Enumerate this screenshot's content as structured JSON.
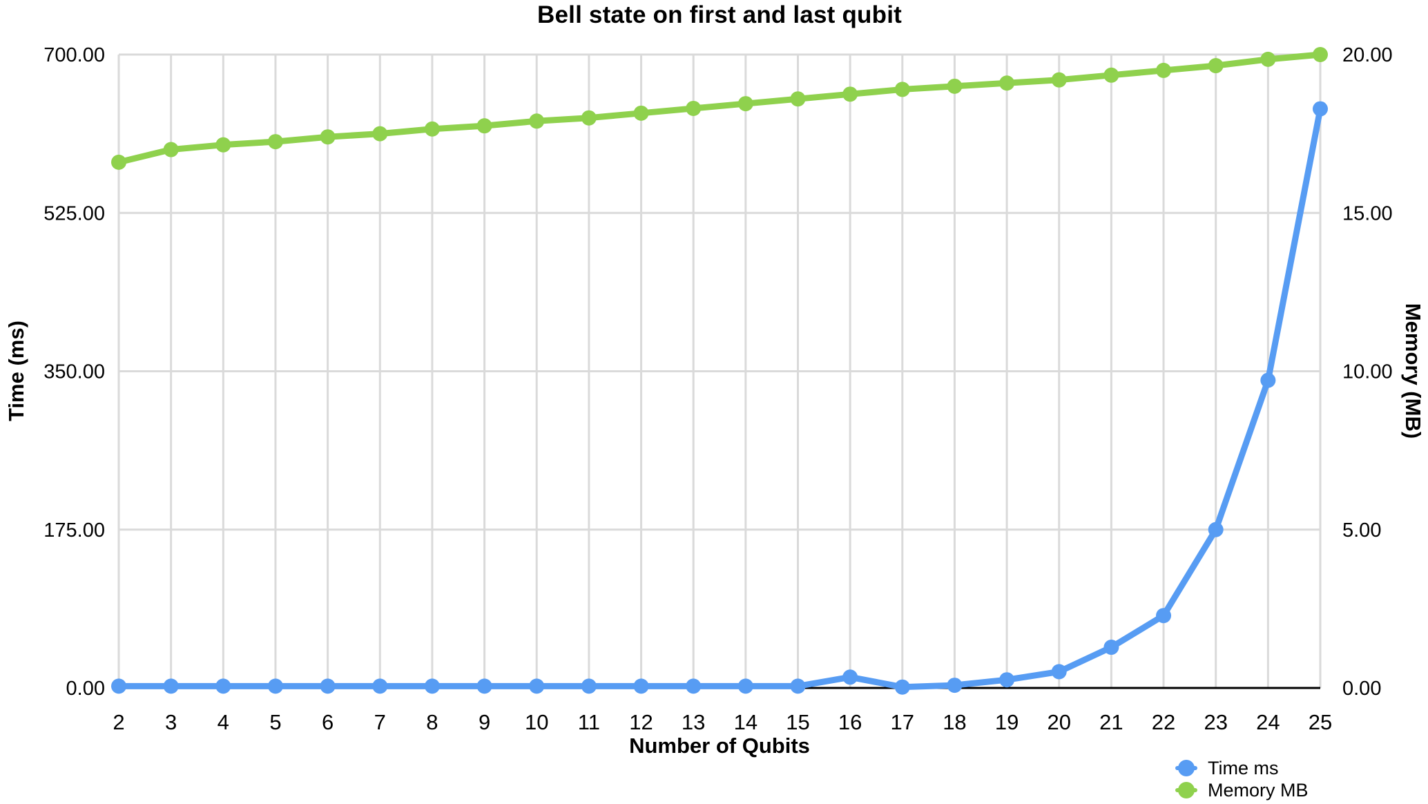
{
  "title": "Bell state on first and last qubit",
  "colors": {
    "time_series": "#579CF3",
    "memory_series": "#8FD14D",
    "gridline": "#DADADA",
    "axis_line": "#000000",
    "text": "#000000",
    "background": "#FFFFFF"
  },
  "chart_data": {
    "type": "line",
    "title": "Bell state on first and last qubit",
    "xlabel": "Number of Qubits",
    "grid": true,
    "legend_position": "bottom-right",
    "x": [
      2,
      3,
      4,
      5,
      6,
      7,
      8,
      9,
      10,
      11,
      12,
      13,
      14,
      15,
      16,
      17,
      18,
      19,
      20,
      21,
      22,
      23,
      24,
      25
    ],
    "x_tick_labels": [
      "2",
      "3",
      "4",
      "5",
      "6",
      "7",
      "8",
      "9",
      "10",
      "11",
      "12",
      "13",
      "14",
      "15",
      "16",
      "17",
      "18",
      "19",
      "20",
      "21",
      "22",
      "23",
      "24",
      "25"
    ],
    "y_left": {
      "label": "Time (ms)",
      "range": [
        0,
        700
      ],
      "ticks": [
        "0.00",
        "175.00",
        "350.00",
        "525.00",
        "700.00"
      ]
    },
    "y_right": {
      "label": "Memory (MB)",
      "range": [
        0,
        20
      ],
      "ticks": [
        "0.00",
        "5.00",
        "10.00",
        "15.00",
        "20.00"
      ]
    },
    "series": [
      {
        "name": "Time ms",
        "axis": "left",
        "color": "#579CF3",
        "values": [
          2,
          2,
          2,
          2,
          2,
          2,
          2,
          2,
          2,
          2,
          2,
          2,
          2,
          2,
          12,
          1,
          3,
          9,
          18,
          45,
          80,
          175,
          340,
          640
        ]
      },
      {
        "name": "Memory MB",
        "axis": "right",
        "color": "#8FD14D",
        "values": [
          16.6,
          17.0,
          17.15,
          17.25,
          17.4,
          17.5,
          17.65,
          17.75,
          17.9,
          18.0,
          18.15,
          18.3,
          18.45,
          18.6,
          18.75,
          18.9,
          19.0,
          19.1,
          19.2,
          19.35,
          19.5,
          19.65,
          19.85,
          20.0
        ]
      }
    ]
  }
}
